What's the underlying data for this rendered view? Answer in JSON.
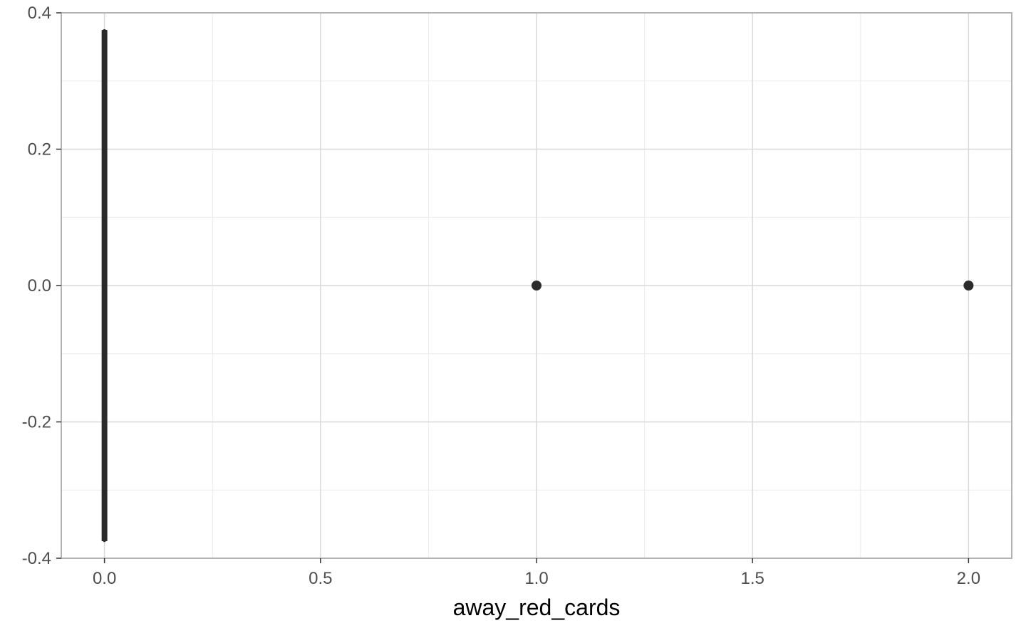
{
  "chart_data": {
    "type": "boxplot",
    "title": "",
    "xlabel": "away_red_cards",
    "ylabel": "",
    "xlim": [
      -0.1,
      2.1
    ],
    "ylim": [
      -0.4,
      0.4
    ],
    "x_ticks": [
      0.0,
      0.5,
      1.0,
      1.5,
      2.0
    ],
    "x_tick_labels": [
      "0.0",
      "0.5",
      "1.0",
      "1.5",
      "2.0"
    ],
    "y_ticks": [
      -0.4,
      -0.2,
      0.0,
      0.2,
      0.4
    ],
    "y_tick_labels": [
      "-0.4",
      "-0.2",
      "0.0",
      "0.2",
      "0.4"
    ],
    "box": {
      "x_min": 0,
      "x_q1": 0,
      "x_median": 0,
      "x_q3": 0,
      "x_max": 0,
      "y_lower": -0.375,
      "y_upper": 0.375
    },
    "outliers": [
      {
        "x": 1.0,
        "y": 0.0
      },
      {
        "x": 2.0,
        "y": 0.0
      }
    ],
    "grid": true,
    "colors": {
      "box": "#2b2b2b",
      "points": "#2b2b2b",
      "grid_major": "#d9d9d9",
      "grid_minor": "#ebebeb",
      "panel_border": "#b3b3b3"
    }
  }
}
